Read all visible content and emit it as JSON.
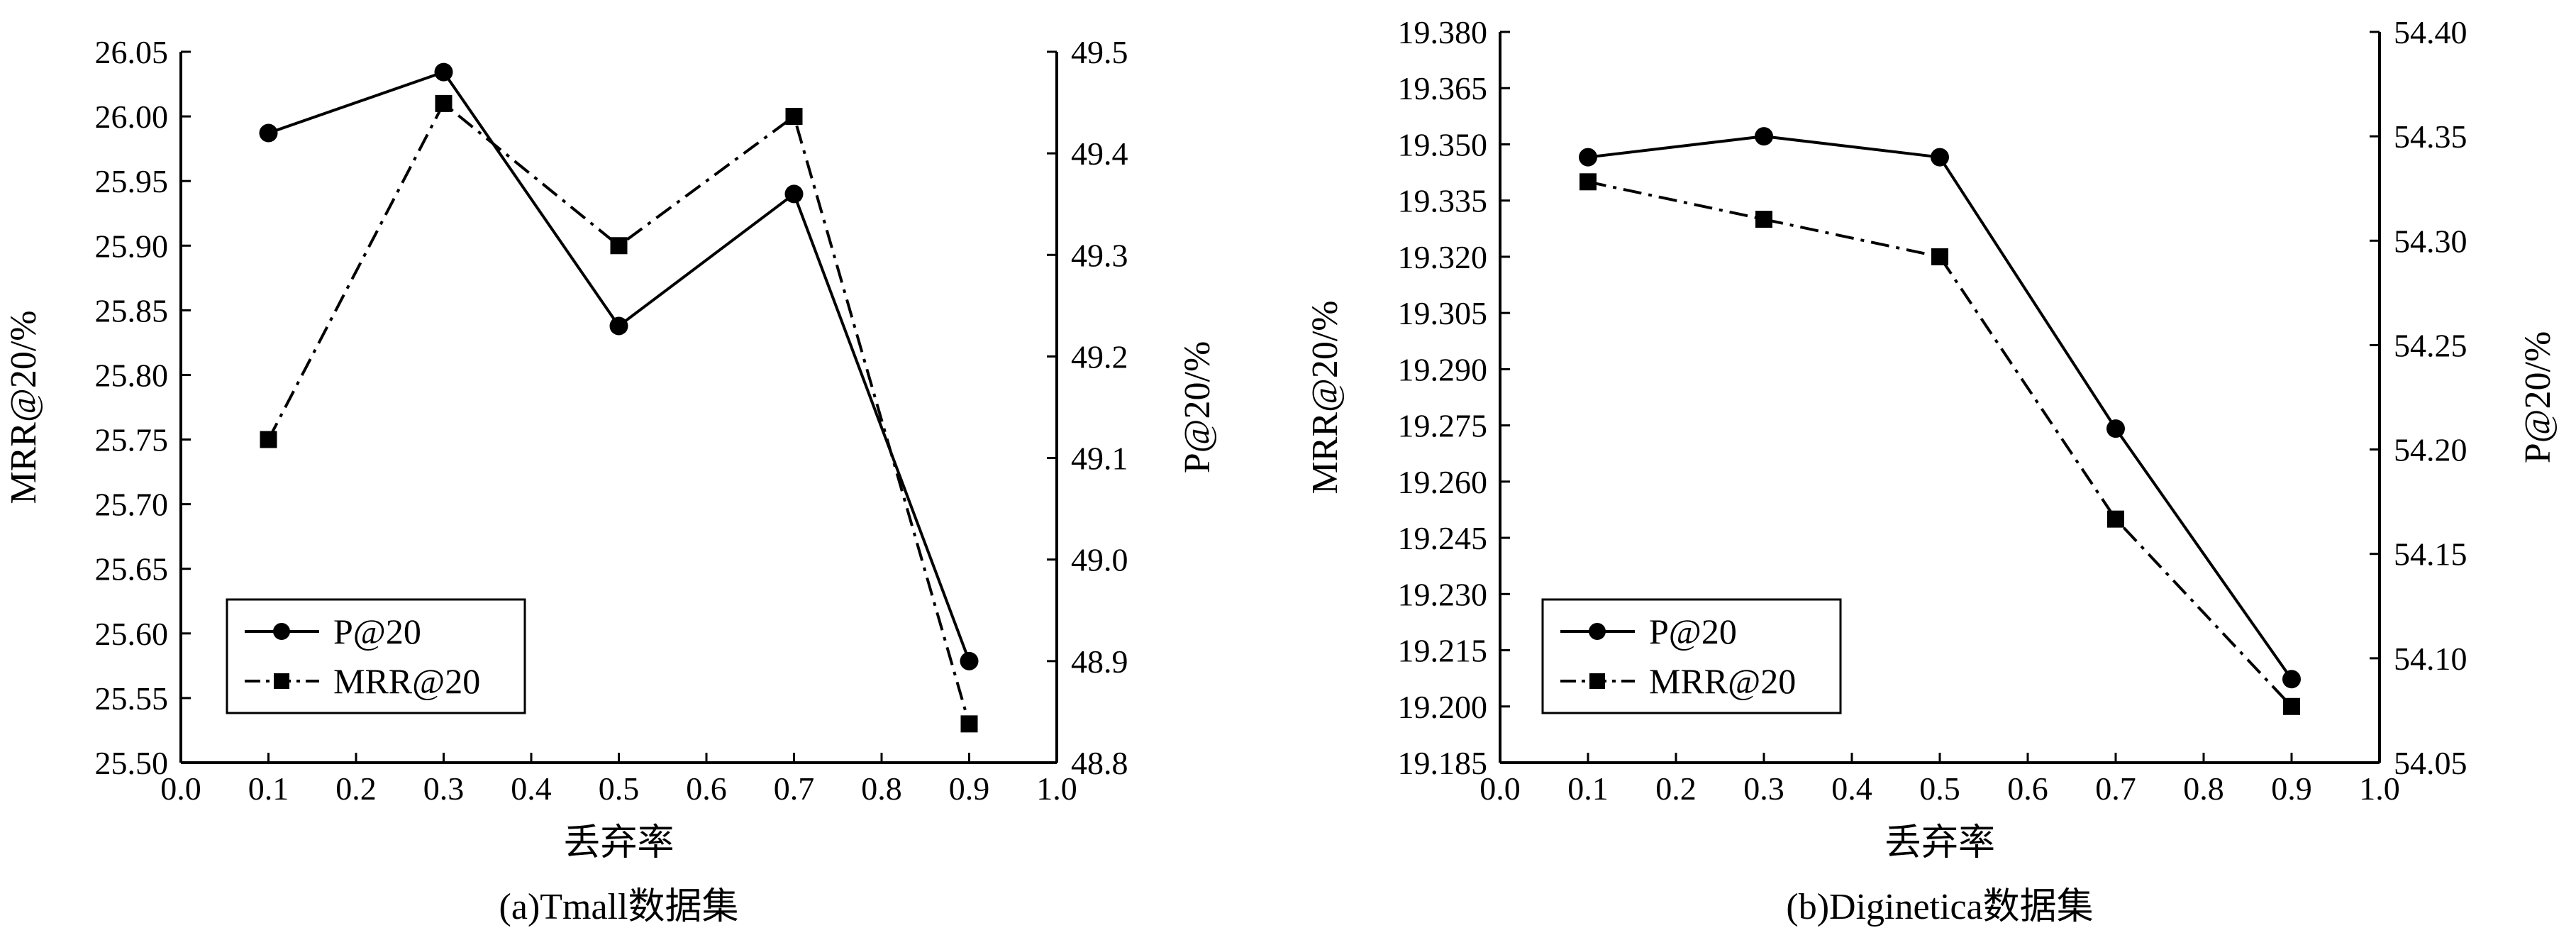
{
  "chart_data": [
    {
      "type": "line",
      "caption": "(a)Tmall数据集",
      "xlabel": "丢弃率",
      "ylabel_left": "MRR@20/%",
      "ylabel_right": "P@20/%",
      "x_ticks": [
        "0.0",
        "0.1",
        "0.2",
        "0.3",
        "0.4",
        "0.5",
        "0.6",
        "0.7",
        "0.8",
        "0.9",
        "1.0"
      ],
      "xlim": [
        0.0,
        1.0
      ],
      "ylim_left": [
        25.5,
        26.05
      ],
      "y_ticks_left": [
        "25.50",
        "25.55",
        "25.60",
        "25.65",
        "25.70",
        "25.75",
        "25.80",
        "25.85",
        "25.90",
        "25.95",
        "26.00",
        "26.05"
      ],
      "ylim_right": [
        48.8,
        49.5
      ],
      "y_ticks_right": [
        "48.8",
        "48.9",
        "49.0",
        "49.1",
        "49.2",
        "49.3",
        "49.4",
        "49.5"
      ],
      "legend_position": "bottom-left",
      "series": [
        {
          "name": "P@20",
          "axis": "right",
          "style": "solid",
          "marker": "circle",
          "x": [
            0.1,
            0.3,
            0.5,
            0.7,
            0.9
          ],
          "values": [
            49.42,
            49.48,
            49.23,
            49.36,
            48.9
          ]
        },
        {
          "name": "MRR@20",
          "axis": "left",
          "style": "dashdot",
          "marker": "square",
          "x": [
            0.1,
            0.3,
            0.5,
            0.7,
            0.9
          ],
          "values": [
            25.75,
            26.01,
            25.9,
            26.0,
            25.53
          ]
        }
      ]
    },
    {
      "type": "line",
      "caption": "(b)Diginetica数据集",
      "xlabel": "丢弃率",
      "ylabel_left": "MRR@20/%",
      "ylabel_right": "P@20/%",
      "x_ticks": [
        "0.0",
        "0.1",
        "0.2",
        "0.3",
        "0.4",
        "0.5",
        "0.6",
        "0.7",
        "0.8",
        "0.9",
        "1.0"
      ],
      "xlim": [
        0.0,
        1.0
      ],
      "ylim_left": [
        19.185,
        19.38
      ],
      "y_ticks_left": [
        "19.185",
        "19.200",
        "19.215",
        "19.230",
        "19.245",
        "19.260",
        "19.275",
        "19.290",
        "19.305",
        "19.320",
        "19.335",
        "19.350",
        "19.365",
        "19.380"
      ],
      "ylim_right": [
        54.05,
        54.4
      ],
      "y_ticks_right": [
        "54.05",
        "54.10",
        "54.15",
        "54.20",
        "54.25",
        "54.30",
        "54.35",
        "54.40"
      ],
      "legend_position": "bottom-left",
      "series": [
        {
          "name": "P@20",
          "axis": "right",
          "style": "solid",
          "marker": "circle",
          "x": [
            0.1,
            0.3,
            0.5,
            0.7,
            0.9
          ],
          "values": [
            54.34,
            54.35,
            54.34,
            54.21,
            54.09
          ]
        },
        {
          "name": "MRR@20",
          "axis": "left",
          "style": "dashdot",
          "marker": "square",
          "x": [
            0.1,
            0.3,
            0.5,
            0.7,
            0.9
          ],
          "values": [
            19.34,
            19.33,
            19.32,
            19.25,
            19.2
          ]
        }
      ]
    }
  ]
}
